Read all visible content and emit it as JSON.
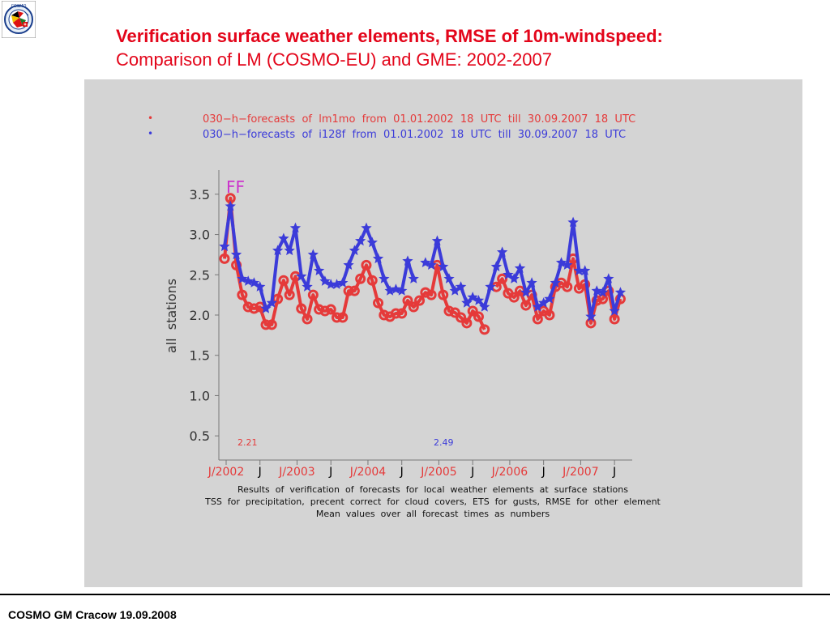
{
  "header": {
    "title_line1": "Verification surface weather elements, RMSE of 10m-windspeed:",
    "title_line2": "Comparison of LM (COSMO-EU) and GME: 2002-2007"
  },
  "logo": {
    "icon": "cosmo-logo-icon",
    "text": "COSMO"
  },
  "footer": {
    "text": "COSMO GM Cracow 19.09.2008"
  },
  "colors": {
    "title": "#e3051a",
    "panel": "#d4d4d4",
    "lm": "#e53a3a",
    "gme": "#3b3bd9",
    "parameter": "#cc33cc"
  },
  "chart_data": {
    "type": "line",
    "legend": [
      {
        "marker": "•",
        "text": "030−h−forecasts  of  lm1mo  from  01.01.2002  18  UTC  till  30.09.2007  18  UTC",
        "color": "#e53a3a"
      },
      {
        "marker": "•",
        "text": "030−h−forecasts  of  i128f  from  01.01.2002  18  UTC  till  30.09.2007  18  UTC",
        "color": "#3b3bd9"
      }
    ],
    "parameter_label": "FF",
    "ylabel": "all  stations",
    "ylim": [
      0.2,
      3.8
    ],
    "yticks": [
      "3.5",
      "3.0",
      "2.5",
      "2.0",
      "1.5",
      "1.0",
      "0.5"
    ],
    "ytick_values": [
      3.5,
      3.0,
      2.5,
      2.0,
      1.5,
      1.0,
      0.5
    ],
    "xticks": [
      "J/2002",
      "J",
      "J/2003",
      "J",
      "J/2004",
      "J",
      "J/2005",
      "J",
      "J/2006",
      "J",
      "J/2007",
      "J"
    ],
    "xtick_colors": [
      "#e53a3a",
      "#000000",
      "#e53a3a",
      "#000000",
      "#e53a3a",
      "#000000",
      "#e53a3a",
      "#000000",
      "#e53a3a",
      "#000000",
      "#e53a3a",
      "#000000"
    ],
    "xlim": [
      0,
      69
    ],
    "means": [
      {
        "series": "lm1mo",
        "value": "2.21",
        "color": "#e53a3a"
      },
      {
        "series": "i128f",
        "value": "2.49",
        "color": "#3b3bd9"
      }
    ],
    "series": [
      {
        "name": "lm1mo",
        "color": "#e53a3a",
        "values": [
          2.7,
          3.45,
          2.62,
          2.25,
          2.1,
          2.08,
          2.1,
          1.88,
          1.88,
          2.2,
          2.43,
          2.25,
          2.48,
          2.08,
          1.95,
          2.25,
          2.07,
          2.05,
          2.07,
          1.97,
          1.97,
          2.3,
          2.3,
          2.45,
          2.62,
          2.43,
          2.15,
          2.0,
          1.98,
          2.02,
          2.02,
          2.18,
          2.1,
          2.18,
          2.28,
          2.25,
          2.62,
          2.25,
          2.05,
          2.03,
          1.97,
          1.9,
          2.05,
          1.98,
          1.82,
          null,
          2.35,
          2.45,
          2.27,
          2.22,
          2.3,
          2.12,
          2.25,
          1.95,
          2.05,
          2.0,
          2.35,
          2.4,
          2.35,
          2.7,
          2.33,
          2.38,
          1.9,
          2.18,
          2.2,
          2.3,
          1.95,
          2.2
        ]
      },
      {
        "name": "i128f",
        "color": "#3b3bd9",
        "values": [
          2.85,
          3.35,
          2.75,
          2.45,
          2.42,
          2.4,
          2.35,
          2.08,
          2.15,
          2.8,
          2.95,
          2.8,
          3.08,
          2.48,
          2.35,
          2.75,
          2.55,
          2.42,
          2.38,
          2.38,
          2.4,
          2.62,
          2.8,
          2.92,
          3.08,
          2.9,
          2.7,
          2.45,
          2.3,
          2.32,
          2.3,
          2.67,
          2.45,
          null,
          2.65,
          2.62,
          2.92,
          2.6,
          2.45,
          2.3,
          2.35,
          2.15,
          2.22,
          2.18,
          2.1,
          2.35,
          2.6,
          2.78,
          2.5,
          2.45,
          2.58,
          2.28,
          2.4,
          2.1,
          2.15,
          2.2,
          2.4,
          2.65,
          2.62,
          3.15,
          2.55,
          2.55,
          1.98,
          2.3,
          2.28,
          2.45,
          2.05,
          2.28
        ]
      }
    ],
    "caption": [
      "Results  of  verification  of  forecasts  for  local  weather  elements  at  surface  stations",
      "TSS  for  precipitation,  precent  correct  for  cloud  covers,  ETS  for  gusts,  RMSE  for  other  element",
      "Mean  values  over  all  forecast  times  as  numbers"
    ]
  }
}
